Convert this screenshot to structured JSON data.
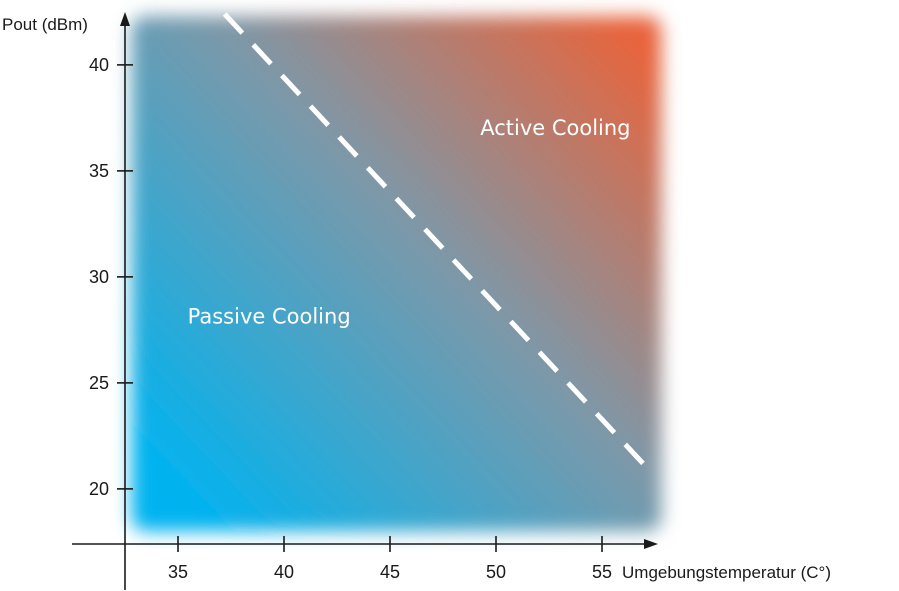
{
  "chart_data": {
    "type": "area",
    "xlabel": "Umgebungstemperatur (C°)",
    "ylabel": "Pout (dBm)",
    "x_ticks": [
      35,
      40,
      45,
      50,
      55
    ],
    "y_ticks": [
      20,
      25,
      30,
      35,
      40
    ],
    "xlim": [
      32.5,
      58
    ],
    "ylim": [
      17.4,
      42.6
    ],
    "regions": [
      {
        "name": "Passive Cooling",
        "color": "#00b3f0",
        "label_at": [
          39.3,
          27.8
        ]
      },
      {
        "name": "Active Cooling",
        "color": "#e8643c",
        "label_at": [
          52.8,
          36.7
        ]
      }
    ],
    "boundary": {
      "style": "dashed",
      "color": "#ffffff",
      "points": [
        [
          37.2,
          42.4
        ],
        [
          57.4,
          20.7
        ]
      ]
    },
    "fill": {
      "x_range": [
        32.8,
        57.8
      ],
      "y_range": [
        18.0,
        42.3
      ],
      "cold_color": "#00b3f0",
      "mid_color": "#7d98a8",
      "hot_color": "#e8643c"
    },
    "grid": false,
    "legend": "none"
  }
}
